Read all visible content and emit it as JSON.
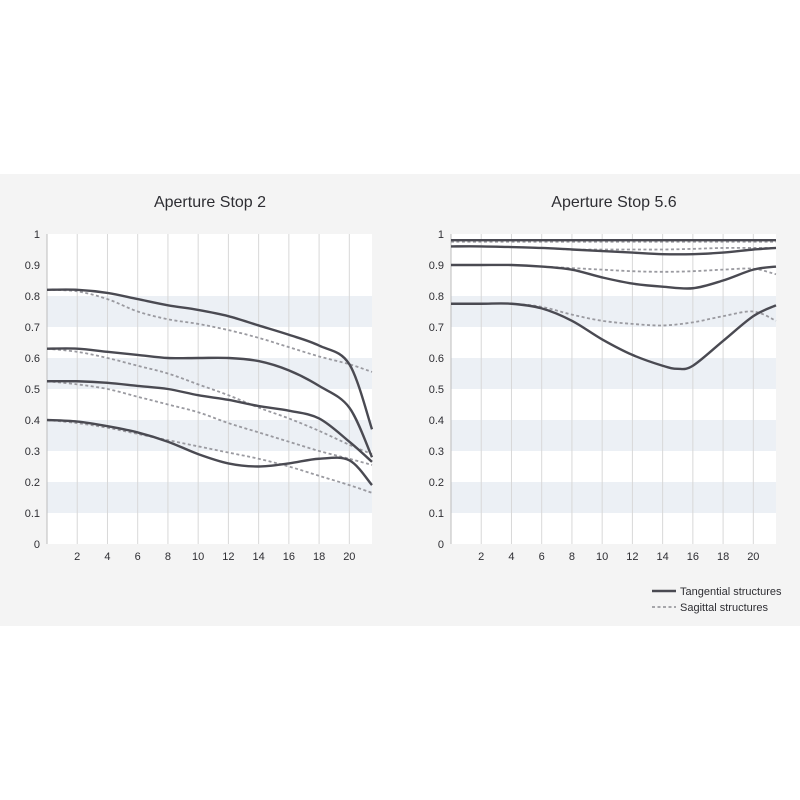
{
  "chart_data": [
    {
      "type": "line",
      "title": "Aperture Stop 2",
      "xlabel": "",
      "ylabel": "",
      "xlim": [
        0,
        21.5
      ],
      "ylim": [
        0,
        1
      ],
      "x_ticks": [
        2,
        4,
        6,
        8,
        10,
        12,
        14,
        16,
        18,
        20
      ],
      "y_ticks": [
        "0",
        "0.1",
        "0.2",
        "0.3",
        "0.4",
        "0.5",
        "0.6",
        "0.7",
        "0.8",
        "0.9",
        "1"
      ],
      "grid": true,
      "series": [
        {
          "style": "solid",
          "x": [
            0,
            2,
            4,
            6,
            8,
            10,
            12,
            14,
            16,
            18,
            20,
            21.5
          ],
          "y": [
            0.82,
            0.82,
            0.81,
            0.79,
            0.77,
            0.755,
            0.735,
            0.705,
            0.675,
            0.64,
            0.58,
            0.37
          ]
        },
        {
          "style": "dashed",
          "x": [
            0,
            2,
            4,
            6,
            8,
            10,
            12,
            14,
            16,
            18,
            20,
            21.5
          ],
          "y": [
            0.82,
            0.815,
            0.79,
            0.75,
            0.725,
            0.71,
            0.69,
            0.665,
            0.635,
            0.605,
            0.58,
            0.555
          ]
        },
        {
          "style": "solid",
          "x": [
            0,
            2,
            4,
            6,
            8,
            10,
            12,
            14,
            16,
            18,
            20,
            21.5
          ],
          "y": [
            0.63,
            0.63,
            0.62,
            0.61,
            0.6,
            0.6,
            0.6,
            0.59,
            0.56,
            0.51,
            0.44,
            0.28
          ]
        },
        {
          "style": "dashed",
          "x": [
            0,
            2,
            4,
            6,
            8,
            10,
            12,
            14,
            16,
            18,
            20,
            21.5
          ],
          "y": [
            0.63,
            0.62,
            0.6,
            0.575,
            0.55,
            0.515,
            0.48,
            0.44,
            0.405,
            0.365,
            0.32,
            0.29
          ]
        },
        {
          "style": "solid",
          "x": [
            0,
            2,
            4,
            6,
            8,
            10,
            12,
            14,
            16,
            18,
            20,
            21.5
          ],
          "y": [
            0.525,
            0.525,
            0.52,
            0.51,
            0.5,
            0.48,
            0.465,
            0.445,
            0.43,
            0.405,
            0.33,
            0.265
          ]
        },
        {
          "style": "dashed",
          "x": [
            0,
            2,
            4,
            6,
            8,
            10,
            12,
            14,
            16,
            18,
            20,
            21.5
          ],
          "y": [
            0.525,
            0.515,
            0.5,
            0.475,
            0.45,
            0.425,
            0.39,
            0.36,
            0.33,
            0.3,
            0.275,
            0.255
          ]
        },
        {
          "style": "solid",
          "x": [
            0,
            2,
            4,
            6,
            8,
            10,
            12,
            14,
            16,
            18,
            20,
            21.5
          ],
          "y": [
            0.4,
            0.395,
            0.38,
            0.36,
            0.33,
            0.29,
            0.26,
            0.25,
            0.26,
            0.275,
            0.27,
            0.19
          ]
        },
        {
          "style": "dashed",
          "x": [
            0,
            2,
            4,
            6,
            8,
            10,
            12,
            14,
            16,
            18,
            20,
            21.5
          ],
          "y": [
            0.4,
            0.39,
            0.375,
            0.355,
            0.335,
            0.315,
            0.295,
            0.275,
            0.25,
            0.22,
            0.19,
            0.165
          ]
        }
      ]
    },
    {
      "type": "line",
      "title": "Aperture Stop 5.6",
      "xlabel": "",
      "ylabel": "",
      "xlim": [
        0,
        21.5
      ],
      "ylim": [
        0,
        1
      ],
      "x_ticks": [
        2,
        4,
        6,
        8,
        10,
        12,
        14,
        16,
        18,
        20
      ],
      "y_ticks": [
        "0",
        "0.1",
        "0.2",
        "0.3",
        "0.4",
        "0.5",
        "0.6",
        "0.7",
        "0.8",
        "0.9",
        "1"
      ],
      "grid": true,
      "series": [
        {
          "style": "solid",
          "x": [
            0,
            4,
            8,
            12,
            16,
            20,
            21.5
          ],
          "y": [
            0.98,
            0.98,
            0.98,
            0.98,
            0.98,
            0.98,
            0.98
          ]
        },
        {
          "style": "dashed",
          "x": [
            0,
            4,
            8,
            12,
            16,
            20,
            21.5
          ],
          "y": [
            0.975,
            0.975,
            0.975,
            0.975,
            0.975,
            0.975,
            0.975
          ]
        },
        {
          "style": "solid",
          "x": [
            0,
            2,
            4,
            6,
            8,
            10,
            12,
            14,
            16,
            18,
            20,
            21.5
          ],
          "y": [
            0.96,
            0.96,
            0.958,
            0.955,
            0.95,
            0.945,
            0.94,
            0.935,
            0.935,
            0.94,
            0.95,
            0.955
          ]
        },
        {
          "style": "dashed",
          "x": [
            0,
            2,
            4,
            6,
            8,
            10,
            12,
            14,
            16,
            18,
            20,
            21.5
          ],
          "y": [
            0.96,
            0.96,
            0.958,
            0.955,
            0.95,
            0.95,
            0.95,
            0.95,
            0.952,
            0.955,
            0.955,
            0.955
          ]
        },
        {
          "style": "solid",
          "x": [
            0,
            2,
            4,
            6,
            8,
            10,
            12,
            14,
            16,
            18,
            20,
            21.5
          ],
          "y": [
            0.9,
            0.9,
            0.9,
            0.895,
            0.885,
            0.86,
            0.84,
            0.83,
            0.825,
            0.85,
            0.885,
            0.895
          ]
        },
        {
          "style": "dashed",
          "x": [
            0,
            2,
            4,
            6,
            8,
            10,
            12,
            14,
            16,
            18,
            20,
            21.5
          ],
          "y": [
            0.9,
            0.9,
            0.9,
            0.895,
            0.89,
            0.885,
            0.88,
            0.878,
            0.88,
            0.885,
            0.888,
            0.87
          ]
        },
        {
          "style": "solid",
          "x": [
            0,
            2,
            4,
            6,
            8,
            10,
            12,
            14,
            15,
            16,
            18,
            20,
            21.5
          ],
          "y": [
            0.775,
            0.775,
            0.775,
            0.76,
            0.72,
            0.66,
            0.61,
            0.575,
            0.565,
            0.575,
            0.655,
            0.735,
            0.77
          ]
        },
        {
          "style": "dashed",
          "x": [
            0,
            2,
            4,
            6,
            8,
            10,
            12,
            14,
            16,
            18,
            20,
            21.5
          ],
          "y": [
            0.775,
            0.775,
            0.775,
            0.765,
            0.74,
            0.72,
            0.71,
            0.705,
            0.715,
            0.735,
            0.75,
            0.72
          ]
        }
      ]
    }
  ],
  "legend": {
    "placement": "bottom-right",
    "tangential_label": "Tangential structures",
    "sagittal_label": "Sagittal structures"
  },
  "colors": {
    "panel_background": "#f4f4f4",
    "plot_background": "#ffffff",
    "band": "#ecf0f5",
    "grid": "#d8d8d8",
    "tangential_line": "#4a4a52",
    "sagittal_line": "#9a9aa0",
    "text": "#2e2e33"
  }
}
